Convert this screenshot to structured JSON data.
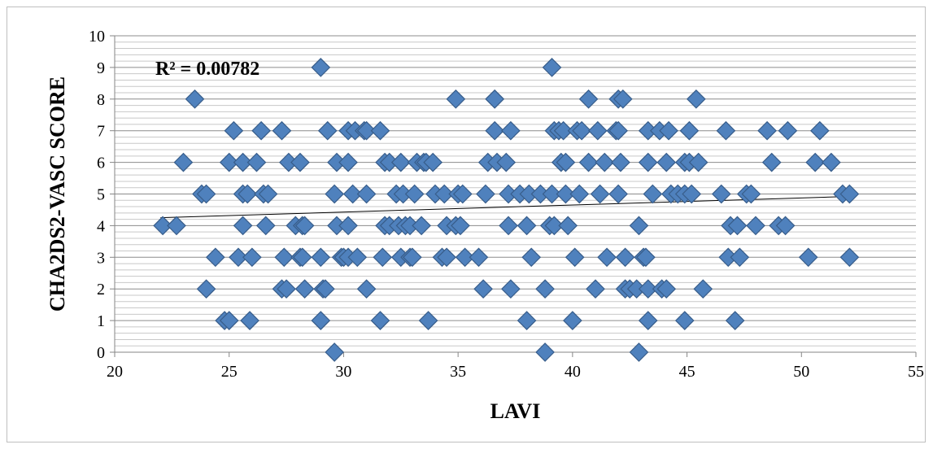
{
  "chart_data": {
    "type": "scatter",
    "xlabel": "LAVI",
    "ylabel": "CHA2DS2-VASC SCORE",
    "xlim": [
      20,
      55
    ],
    "ylim": [
      0,
      10
    ],
    "xticks": [
      20,
      25,
      30,
      35,
      40,
      45,
      50,
      55
    ],
    "yticks": [
      0,
      1,
      2,
      3,
      4,
      5,
      6,
      7,
      8,
      9,
      10
    ],
    "minor_grid_step": 0.2,
    "grid": true,
    "marker": "diamond",
    "marker_color": "#4f81bd",
    "marker_edge_color": "#385d8a",
    "annotation": "R² = 0.00782",
    "trendline": {
      "x": [
        22,
        52
      ],
      "y": [
        4.25,
        4.92
      ]
    },
    "points": [
      [
        29.6,
        0
      ],
      [
        38.8,
        0
      ],
      [
        42.9,
        0
      ],
      [
        24.8,
        1
      ],
      [
        25.0,
        1
      ],
      [
        25.9,
        1
      ],
      [
        29.0,
        1
      ],
      [
        31.6,
        1
      ],
      [
        33.7,
        1
      ],
      [
        38.0,
        1
      ],
      [
        40.0,
        1
      ],
      [
        43.3,
        1
      ],
      [
        44.9,
        1
      ],
      [
        47.1,
        1
      ],
      [
        24.0,
        2
      ],
      [
        27.3,
        2
      ],
      [
        27.5,
        2
      ],
      [
        28.3,
        2
      ],
      [
        29.1,
        2
      ],
      [
        29.2,
        2
      ],
      [
        31.0,
        2
      ],
      [
        36.1,
        2
      ],
      [
        37.3,
        2
      ],
      [
        38.8,
        2
      ],
      [
        41.0,
        2
      ],
      [
        42.3,
        2
      ],
      [
        42.5,
        2
      ],
      [
        42.8,
        2
      ],
      [
        43.3,
        2
      ],
      [
        43.9,
        2
      ],
      [
        44.1,
        2
      ],
      [
        45.7,
        2
      ],
      [
        24.4,
        3
      ],
      [
        25.4,
        3
      ],
      [
        26.0,
        3
      ],
      [
        27.4,
        3
      ],
      [
        28.1,
        3
      ],
      [
        28.2,
        3
      ],
      [
        29.0,
        3
      ],
      [
        29.9,
        3
      ],
      [
        30.0,
        3
      ],
      [
        30.2,
        3
      ],
      [
        30.6,
        3
      ],
      [
        31.7,
        3
      ],
      [
        32.5,
        3
      ],
      [
        32.9,
        3
      ],
      [
        33.0,
        3
      ],
      [
        34.3,
        3
      ],
      [
        34.5,
        3
      ],
      [
        35.3,
        3
      ],
      [
        35.9,
        3
      ],
      [
        38.2,
        3
      ],
      [
        40.1,
        3
      ],
      [
        41.5,
        3
      ],
      [
        42.3,
        3
      ],
      [
        43.1,
        3
      ],
      [
        43.2,
        3
      ],
      [
        46.8,
        3
      ],
      [
        47.3,
        3
      ],
      [
        50.3,
        3
      ],
      [
        52.1,
        3
      ],
      [
        22.1,
        4
      ],
      [
        22.7,
        4
      ],
      [
        25.6,
        4
      ],
      [
        26.6,
        4
      ],
      [
        27.9,
        4
      ],
      [
        28.2,
        4
      ],
      [
        28.3,
        4
      ],
      [
        29.7,
        4
      ],
      [
        30.2,
        4
      ],
      [
        31.8,
        4
      ],
      [
        32.0,
        4
      ],
      [
        32.4,
        4
      ],
      [
        32.7,
        4
      ],
      [
        32.9,
        4
      ],
      [
        33.4,
        4
      ],
      [
        34.5,
        4
      ],
      [
        34.9,
        4
      ],
      [
        35.1,
        4
      ],
      [
        37.2,
        4
      ],
      [
        38.0,
        4
      ],
      [
        39.0,
        4
      ],
      [
        39.2,
        4
      ],
      [
        39.8,
        4
      ],
      [
        42.9,
        4
      ],
      [
        46.9,
        4
      ],
      [
        47.2,
        4
      ],
      [
        48.0,
        4
      ],
      [
        49.0,
        4
      ],
      [
        49.3,
        4
      ],
      [
        23.8,
        5
      ],
      [
        24.0,
        5
      ],
      [
        25.6,
        5
      ],
      [
        25.8,
        5
      ],
      [
        26.5,
        5
      ],
      [
        26.7,
        5
      ],
      [
        29.6,
        5
      ],
      [
        30.4,
        5
      ],
      [
        31.0,
        5
      ],
      [
        32.3,
        5
      ],
      [
        32.6,
        5
      ],
      [
        33.1,
        5
      ],
      [
        34.0,
        5
      ],
      [
        34.4,
        5
      ],
      [
        35.0,
        5
      ],
      [
        35.2,
        5
      ],
      [
        36.2,
        5
      ],
      [
        37.2,
        5
      ],
      [
        37.7,
        5
      ],
      [
        38.1,
        5
      ],
      [
        38.6,
        5
      ],
      [
        39.1,
        5
      ],
      [
        39.7,
        5
      ],
      [
        40.3,
        5
      ],
      [
        41.2,
        5
      ],
      [
        42.0,
        5
      ],
      [
        43.5,
        5
      ],
      [
        44.3,
        5
      ],
      [
        44.6,
        5
      ],
      [
        44.9,
        5
      ],
      [
        45.2,
        5
      ],
      [
        46.5,
        5
      ],
      [
        47.6,
        5
      ],
      [
        47.8,
        5
      ],
      [
        51.8,
        5
      ],
      [
        52.1,
        5
      ],
      [
        23.0,
        6
      ],
      [
        25.0,
        6
      ],
      [
        25.6,
        6
      ],
      [
        26.2,
        6
      ],
      [
        27.6,
        6
      ],
      [
        28.1,
        6
      ],
      [
        29.7,
        6
      ],
      [
        30.2,
        6
      ],
      [
        31.8,
        6
      ],
      [
        32.0,
        6
      ],
      [
        32.5,
        6
      ],
      [
        33.2,
        6
      ],
      [
        33.5,
        6
      ],
      [
        33.6,
        6
      ],
      [
        33.9,
        6
      ],
      [
        36.3,
        6
      ],
      [
        36.7,
        6
      ],
      [
        37.1,
        6
      ],
      [
        39.5,
        6
      ],
      [
        39.7,
        6
      ],
      [
        40.7,
        6
      ],
      [
        41.4,
        6
      ],
      [
        42.1,
        6
      ],
      [
        43.3,
        6
      ],
      [
        44.1,
        6
      ],
      [
        44.9,
        6
      ],
      [
        45.1,
        6
      ],
      [
        45.5,
        6
      ],
      [
        48.7,
        6
      ],
      [
        50.6,
        6
      ],
      [
        51.3,
        6
      ],
      [
        25.2,
        7
      ],
      [
        26.4,
        7
      ],
      [
        27.3,
        7
      ],
      [
        29.3,
        7
      ],
      [
        30.2,
        7
      ],
      [
        30.5,
        7
      ],
      [
        30.9,
        7
      ],
      [
        31.0,
        7
      ],
      [
        31.6,
        7
      ],
      [
        36.6,
        7
      ],
      [
        37.3,
        7
      ],
      [
        39.2,
        7
      ],
      [
        39.4,
        7
      ],
      [
        39.6,
        7
      ],
      [
        40.2,
        7
      ],
      [
        40.4,
        7
      ],
      [
        41.1,
        7
      ],
      [
        41.9,
        7
      ],
      [
        42.0,
        7
      ],
      [
        43.3,
        7
      ],
      [
        43.8,
        7
      ],
      [
        44.2,
        7
      ],
      [
        45.1,
        7
      ],
      [
        46.7,
        7
      ],
      [
        48.5,
        7
      ],
      [
        49.4,
        7
      ],
      [
        50.8,
        7
      ],
      [
        23.5,
        8
      ],
      [
        34.9,
        8
      ],
      [
        36.6,
        8
      ],
      [
        36.6,
        8
      ],
      [
        40.7,
        8
      ],
      [
        42.0,
        8
      ],
      [
        42.2,
        8
      ],
      [
        45.4,
        8
      ],
      [
        29.0,
        9
      ],
      [
        39.1,
        9
      ]
    ]
  }
}
